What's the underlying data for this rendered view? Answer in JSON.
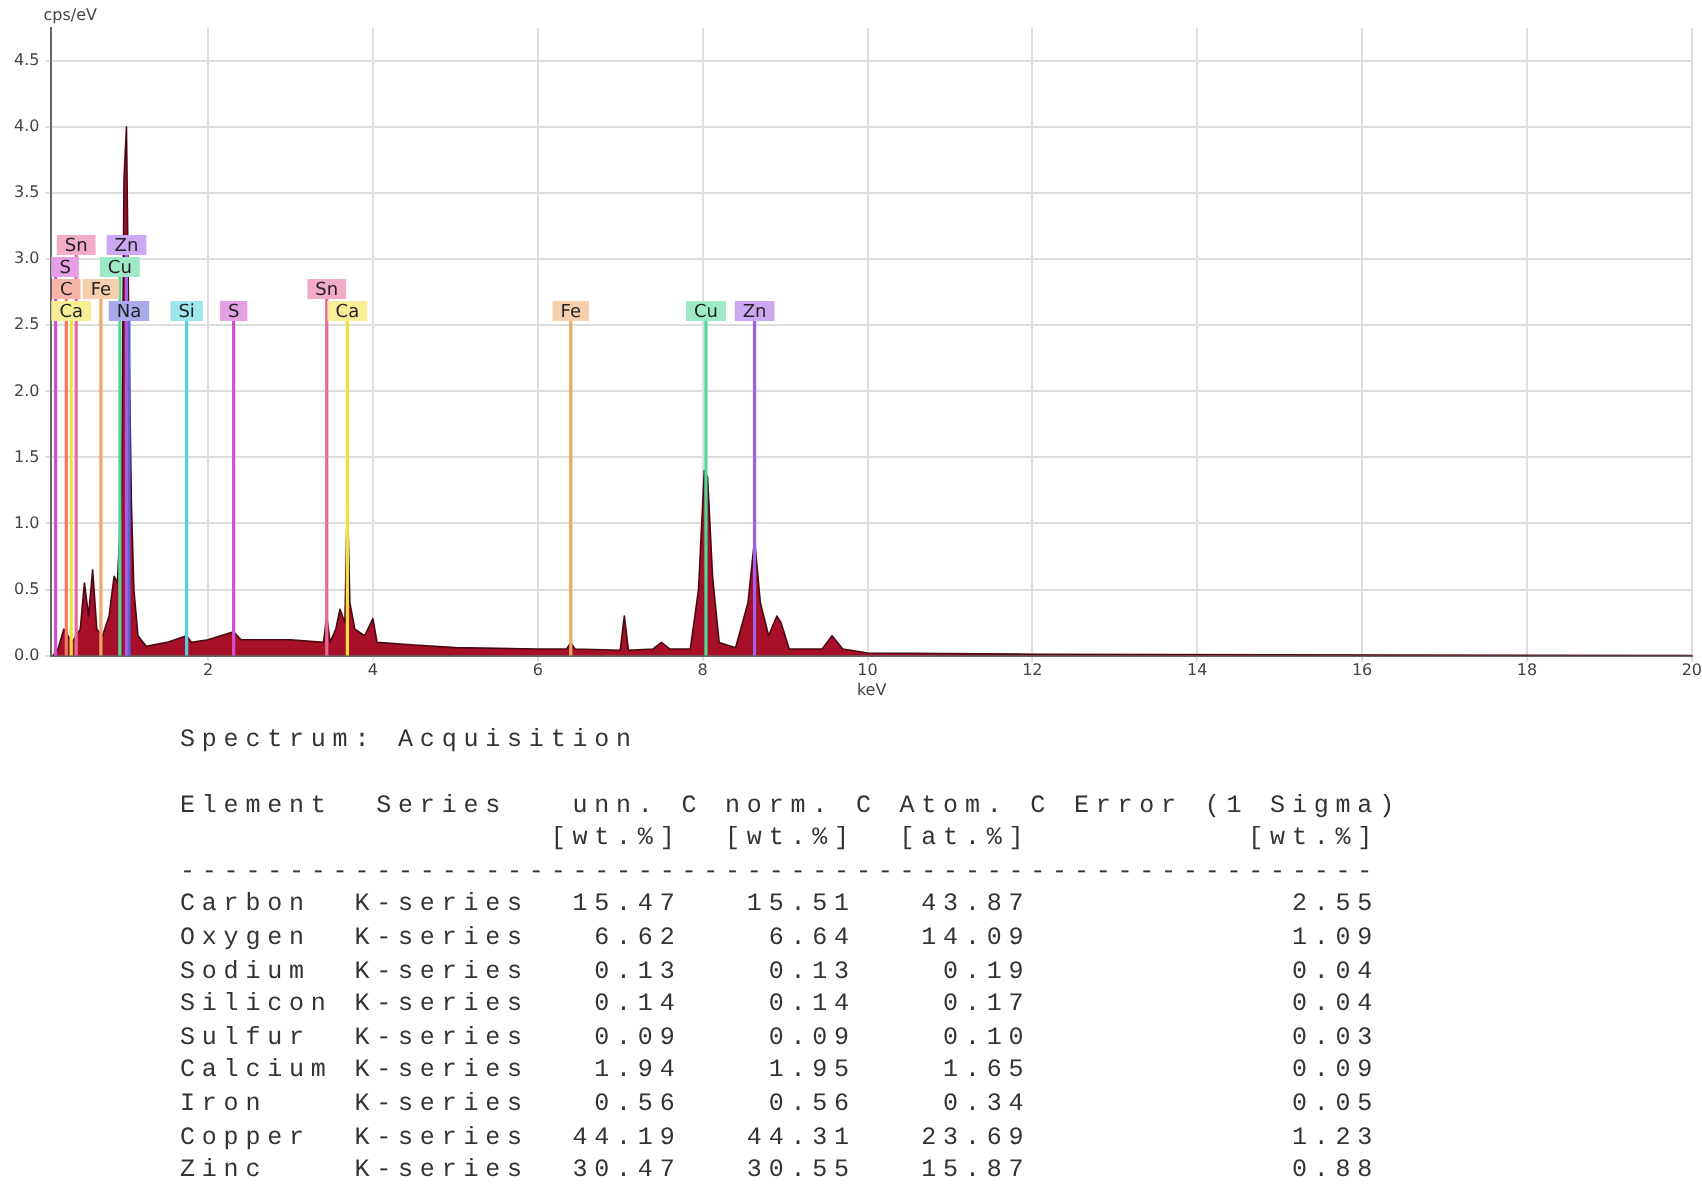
{
  "chart_data": {
    "type": "area",
    "ylabel": "cps/eV",
    "xlabel": "keV",
    "x": [
      0.12,
      0.18,
      0.25,
      0.3,
      0.35,
      0.45,
      0.5,
      0.55,
      0.6,
      0.65,
      0.72,
      0.8,
      0.86,
      0.9,
      0.95,
      0.98,
      1.01,
      1.04,
      1.07,
      1.1,
      1.15,
      1.25,
      1.5,
      1.74,
      1.8,
      2.0,
      2.31,
      2.4,
      3.0,
      3.4,
      3.44,
      3.48,
      3.55,
      3.6,
      3.66,
      3.69,
      3.72,
      3.78,
      3.9,
      4.0,
      4.05,
      4.5,
      5.0,
      6.0,
      6.35,
      6.4,
      6.45,
      7.0,
      7.05,
      7.1,
      7.4,
      7.5,
      7.6,
      7.85,
      7.95,
      8.02,
      8.06,
      8.12,
      8.2,
      8.4,
      8.55,
      8.63,
      8.7,
      8.8,
      8.9,
      8.95,
      9.05,
      9.45,
      9.57,
      9.7,
      10,
      12,
      20
    ],
    "series": [
      {
        "color": "#a8102a",
        "values": [
          0,
          0.05,
          0.2,
          0.15,
          0.1,
          0.2,
          0.55,
          0.3,
          0.65,
          0.2,
          0.15,
          0.3,
          0.6,
          0.55,
          1.2,
          3.6,
          4.0,
          2.4,
          1.15,
          0.5,
          0.15,
          0.07,
          0.1,
          0.15,
          0.1,
          0.12,
          0.18,
          0.12,
          0.12,
          0.1,
          0.3,
          0.1,
          0.2,
          0.35,
          0.25,
          1.2,
          0.4,
          0.2,
          0.15,
          0.28,
          0.1,
          0.08,
          0.06,
          0.05,
          0.05,
          0.1,
          0.05,
          0.04,
          0.3,
          0.04,
          0.05,
          0.1,
          0.05,
          0.05,
          0.5,
          1.4,
          1.35,
          0.6,
          0.1,
          0.06,
          0.4,
          0.88,
          0.4,
          0.15,
          0.3,
          0.25,
          0.05,
          0.05,
          0.15,
          0.05,
          0.02,
          0.01,
          0
        ]
      }
    ],
    "xlim": [
      0.1,
      20
    ],
    "xticks": [
      2,
      4,
      6,
      8,
      10,
      12,
      14,
      16,
      18,
      20
    ],
    "ylim": [
      0,
      4.75
    ],
    "yticks": [
      {
        "value": 0,
        "label": "0.0"
      },
      {
        "value": 0.5,
        "label": "0.5"
      },
      {
        "value": 1,
        "label": "1.0"
      },
      {
        "value": 1.5,
        "label": "1.5"
      },
      {
        "value": 2,
        "label": "2.0"
      },
      {
        "value": 2.5,
        "label": "2.5"
      },
      {
        "value": 3,
        "label": "3.0"
      },
      {
        "value": 3.5,
        "label": "3.5"
      },
      {
        "value": 4,
        "label": "4.0"
      },
      {
        "value": 4.5,
        "label": "4.5"
      }
    ],
    "grid": true,
    "legend": false,
    "marker": "none",
    "ref_lines": [
      {
        "axis": "x",
        "value": 0.34,
        "label": "Ca",
        "color": "#f0e040"
      },
      {
        "axis": "x",
        "value": 0.28,
        "label": "C",
        "color": "#f07860"
      },
      {
        "axis": "x",
        "value": 0.15,
        "label": "S",
        "color": "#d050d0"
      },
      {
        "axis": "x",
        "value": 0.4,
        "label": "Sn",
        "color": "#e8689a"
      },
      {
        "axis": "x",
        "value": 0.7,
        "label": "Fe",
        "color": "#f0a868"
      },
      {
        "axis": "x",
        "value": 1.04,
        "label": "Na",
        "color": "#6060d8"
      },
      {
        "axis": "x",
        "value": 0.93,
        "label": "Cu",
        "color": "#50d898"
      },
      {
        "axis": "x",
        "value": 1.01,
        "label": "Zn",
        "color": "#a060e8"
      },
      {
        "axis": "x",
        "value": 1.74,
        "label": "Si",
        "color": "#50d0e0"
      },
      {
        "axis": "x",
        "value": 2.31,
        "label": "S",
        "color": "#d050d0"
      },
      {
        "axis": "x",
        "value": 3.69,
        "label": "Ca",
        "color": "#f0e040"
      },
      {
        "axis": "x",
        "value": 3.44,
        "label": "Sn",
        "color": "#e8689a"
      },
      {
        "axis": "x",
        "value": 6.4,
        "label": "Fe",
        "color": "#f0a868"
      },
      {
        "axis": "x",
        "value": 8.04,
        "label": "Cu",
        "color": "#50d898"
      },
      {
        "axis": "x",
        "value": 8.63,
        "label": "Zn",
        "color": "#a060e8"
      }
    ],
    "annotations": [
      "Spectrum: Acquisition",
      "Element  Series   unn. C norm. C Atom. C Error (1 Sigma)",
      "                 [wt.%]  [wt.%]  [at.%]          [wt.%]",
      "-------------------------------------------------------",
      "Carbon  K-series  15.47   15.51   43.87            2.55",
      "Oxygen  K-series   6.62    6.64   14.09            1.09",
      "Sodium  K-series   0.13    0.13    0.19            0.04",
      "Silicon K-series   0.14    0.14    0.17            0.04",
      "Sulfur  K-series   0.09    0.09    0.10            0.03",
      "Calcium K-series   1.94    1.95    1.65            0.09",
      "Iron    K-series   0.56    0.56    0.34            0.05",
      "Copper  K-series  44.19   44.31   23.69            1.23",
      "Zinc    K-series  30.47   30.55   15.87            0.88"
    ]
  }
}
